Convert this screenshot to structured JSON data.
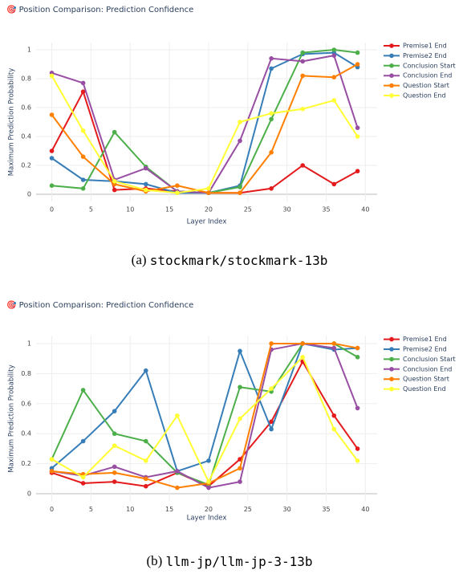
{
  "chart_data": [
    {
      "type": "line",
      "title": "🎯 Position Comparison: Prediction Confidence",
      "x_label": "Layer Index",
      "y_label": "Maximum Prediction Probability",
      "x": [
        0,
        4,
        8,
        12,
        16,
        20,
        24,
        28,
        32,
        36,
        39
      ],
      "xlim": [
        -2,
        41.5
      ],
      "xticks": [
        0,
        5,
        10,
        15,
        20,
        25,
        30,
        35,
        40
      ],
      "ylim": [
        -0.05,
        1.05
      ],
      "yticks": [
        0,
        0.2,
        0.4,
        0.6,
        0.8,
        1
      ],
      "grid": true,
      "legend": "right",
      "series": [
        {
          "name": "Premise1 End",
          "color": "#e41a1c",
          "values": [
            0.3,
            0.71,
            0.03,
            0.04,
            0.02,
            0.01,
            0.01,
            0.04,
            0.2,
            0.07,
            0.16
          ]
        },
        {
          "name": "Premise2 End",
          "color": "#377eb8",
          "values": [
            0.25,
            0.1,
            0.09,
            0.07,
            0.01,
            0.01,
            0.06,
            0.87,
            0.97,
            0.98,
            0.88
          ]
        },
        {
          "name": "Conclusion Start",
          "color": "#4daf4a",
          "values": [
            0.06,
            0.04,
            0.43,
            0.19,
            0.02,
            0.01,
            0.05,
            0.52,
            0.98,
            1.0,
            0.98
          ]
        },
        {
          "name": "Conclusion End",
          "color": "#984ea3",
          "values": [
            0.84,
            0.77,
            0.1,
            0.18,
            0.02,
            0.01,
            0.37,
            0.94,
            0.92,
            0.96,
            0.46
          ]
        },
        {
          "name": "Question Start",
          "color": "#ff7f00",
          "values": [
            0.55,
            0.26,
            0.07,
            0.02,
            0.06,
            0.01,
            0.01,
            0.29,
            0.82,
            0.81,
            0.9
          ]
        },
        {
          "name": "Question End",
          "color": "#ffff33",
          "values": [
            0.82,
            0.44,
            0.09,
            0.03,
            0.01,
            0.04,
            0.5,
            0.56,
            0.59,
            0.65,
            0.4
          ]
        }
      ]
    },
    {
      "type": "line",
      "title": "🎯 Position Comparison: Prediction Confidence",
      "x_label": "Layer Index",
      "y_label": "Maximum Prediction Probability",
      "x": [
        0,
        4,
        8,
        12,
        16,
        20,
        24,
        28,
        32,
        36,
        39
      ],
      "xlim": [
        -2,
        41.5
      ],
      "xticks": [
        0,
        5,
        10,
        15,
        20,
        25,
        30,
        35,
        40
      ],
      "ylim": [
        -0.05,
        1.05
      ],
      "yticks": [
        0,
        0.2,
        0.4,
        0.6,
        0.8,
        1
      ],
      "grid": true,
      "legend": "right",
      "series": [
        {
          "name": "Premise1 End",
          "color": "#e41a1c",
          "values": [
            0.14,
            0.07,
            0.08,
            0.05,
            0.14,
            0.05,
            0.23,
            0.48,
            0.88,
            0.52,
            0.3
          ]
        },
        {
          "name": "Premise2 End",
          "color": "#377eb8",
          "values": [
            0.17,
            0.35,
            0.55,
            0.82,
            0.15,
            0.22,
            0.95,
            0.43,
            1.0,
            0.96,
            0.97
          ]
        },
        {
          "name": "Conclusion Start",
          "color": "#4daf4a",
          "values": [
            0.23,
            0.69,
            0.4,
            0.35,
            0.14,
            0.06,
            0.71,
            0.68,
            1.0,
            1.0,
            0.91
          ]
        },
        {
          "name": "Conclusion End",
          "color": "#984ea3",
          "values": [
            0.15,
            0.12,
            0.18,
            0.11,
            0.15,
            0.04,
            0.08,
            0.96,
            1.0,
            0.97,
            0.57
          ]
        },
        {
          "name": "Question Start",
          "color": "#ff7f00",
          "values": [
            0.15,
            0.13,
            0.14,
            0.1,
            0.04,
            0.07,
            0.17,
            1.0,
            1.0,
            1.0,
            0.97
          ]
        },
        {
          "name": "Question End",
          "color": "#ffff33",
          "values": [
            0.23,
            0.11,
            0.32,
            0.22,
            0.52,
            0.08,
            0.5,
            0.7,
            0.91,
            0.43,
            0.22
          ]
        }
      ]
    }
  ],
  "captions": [
    {
      "label": "(a)",
      "name": "stockmark/stockmark-13b"
    },
    {
      "label": "(b)",
      "name": "llm-jp/llm-jp-3-13b"
    }
  ]
}
